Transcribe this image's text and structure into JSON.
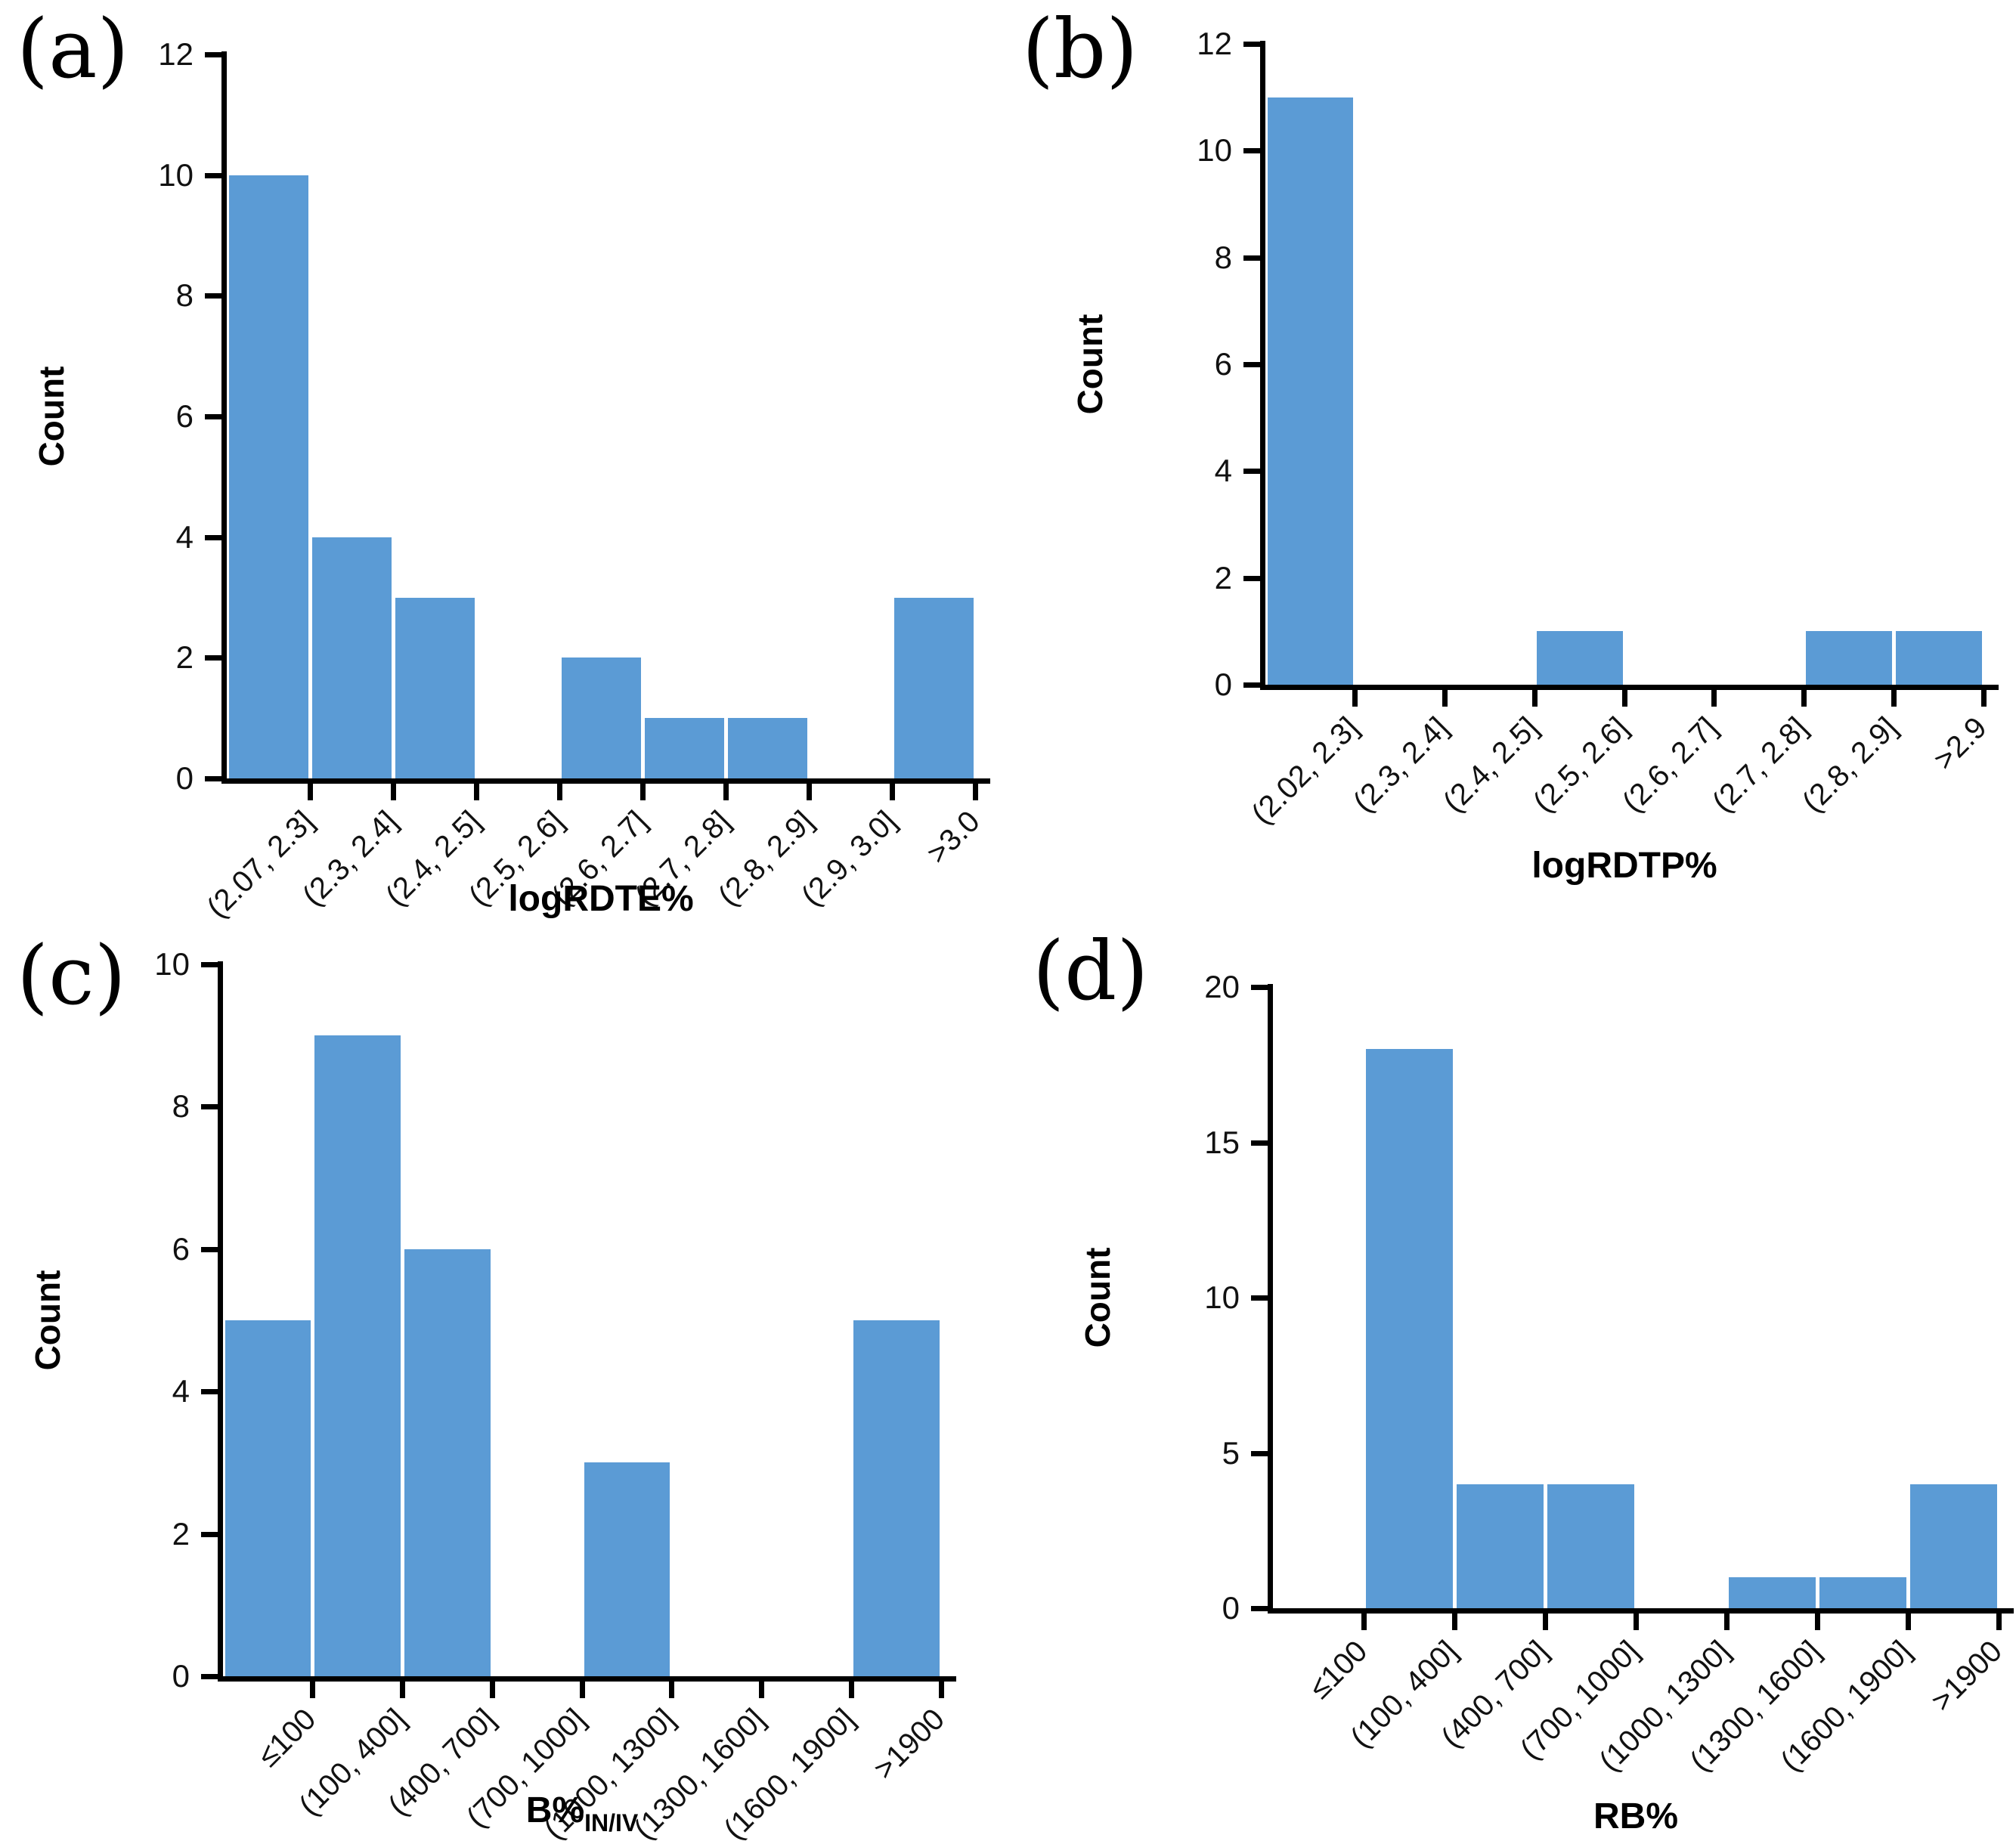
{
  "figure": {
    "background": "#ffffff",
    "bar_color": "#5B9BD5",
    "axis_color": "#000000"
  },
  "chart_data": [
    {
      "panel": "(a)",
      "type": "bar",
      "title": "logRDTE%",
      "title_sub": "",
      "ylabel": "Count",
      "ylim": [
        0,
        12
      ],
      "yticks": [
        0,
        2,
        4,
        6,
        8,
        10,
        12
      ],
      "categories": [
        "(2.07, 2.3]",
        "(2.3, 2.4]",
        "(2.4, 2.5]",
        "(2.5, 2.6]",
        "(2.6, 2.7]",
        "(2.7, 2.8]",
        "(2.8, 2.9]",
        "(2.9, 3.0]",
        ">3.0"
      ],
      "values": [
        10,
        4,
        3,
        0,
        2,
        1,
        1,
        0,
        3
      ],
      "grid": false,
      "legend": "none"
    },
    {
      "panel": "(b)",
      "type": "bar",
      "title": "logRDTP%",
      "title_sub": "",
      "ylabel": "Count",
      "ylim": [
        0,
        12
      ],
      "yticks": [
        0,
        2,
        4,
        6,
        8,
        10,
        12
      ],
      "categories": [
        "(2.02, 2.3]",
        "(2.3, 2.4]",
        "(2.4, 2.5]",
        "(2.5, 2.6]",
        "(2.6, 2.7]",
        "(2.7, 2.8]",
        "(2.8, 2.9]",
        ">2.9"
      ],
      "values": [
        11,
        0,
        0,
        1,
        0,
        0,
        1,
        1
      ],
      "grid": false,
      "legend": "none"
    },
    {
      "panel": "(c)",
      "type": "bar",
      "title": "B%",
      "title_sub": "IN/IV",
      "ylabel": "Count",
      "ylim": [
        0,
        10
      ],
      "yticks": [
        0,
        2,
        4,
        6,
        8,
        10
      ],
      "categories": [
        "≤100",
        "(100, 400]",
        "(400, 700]",
        "(700, 1000]",
        "(1000, 1300]",
        "(1300, 1600]",
        "(1600, 1900]",
        ">1900"
      ],
      "values": [
        5,
        9,
        6,
        0,
        3,
        0,
        0,
        5
      ],
      "grid": false,
      "legend": "none"
    },
    {
      "panel": "(d)",
      "type": "bar",
      "title": "RB%",
      "title_sub": "",
      "ylabel": "Count",
      "ylim": [
        0,
        20
      ],
      "yticks": [
        0,
        5,
        10,
        15,
        20
      ],
      "categories": [
        "≤100",
        "(100, 400]",
        "(400, 700]",
        "(700, 1000]",
        "(1000, 1300]",
        "(1300, 1600]",
        "(1600, 1900]",
        ">1900"
      ],
      "values": [
        0,
        18,
        4,
        4,
        0,
        1,
        1,
        4
      ],
      "grid": false,
      "legend": "none"
    }
  ]
}
